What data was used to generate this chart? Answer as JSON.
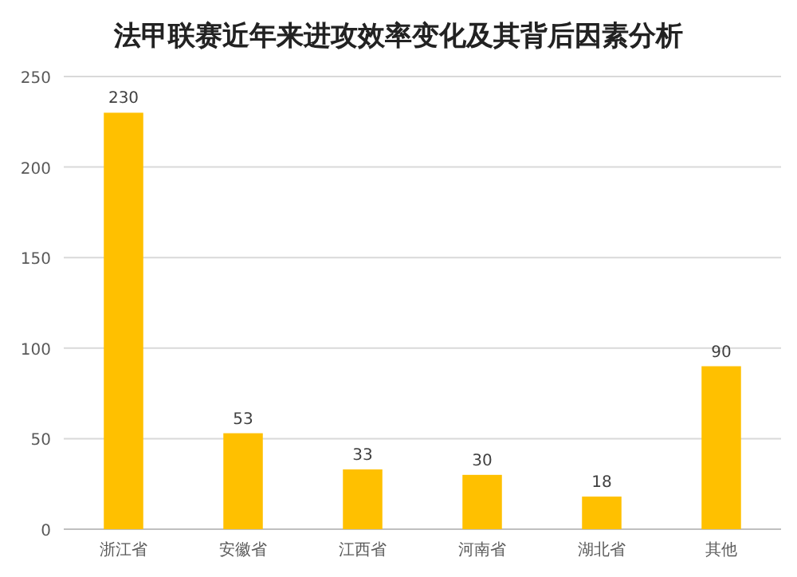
{
  "chart_data": {
    "type": "bar",
    "title": "法甲联赛近年来进攻效率变化及其背后因素分析",
    "categories": [
      "浙江省",
      "安徽省",
      "江西省",
      "河南省",
      "湖北省",
      "其他"
    ],
    "values": [
      230,
      53,
      33,
      30,
      18,
      90
    ],
    "color": "#ffc000",
    "ylim": [
      0,
      250
    ],
    "yticks": [
      0,
      50,
      100,
      150,
      200,
      250
    ],
    "grid": "y",
    "data_labels": true
  }
}
